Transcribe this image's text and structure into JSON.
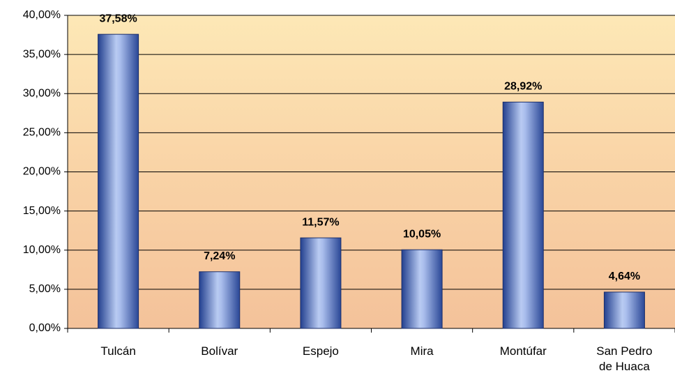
{
  "chart_data": {
    "type": "bar",
    "categories": [
      "Tulcán",
      "Bolívar",
      "Espejo",
      "Mira",
      "Montúfar",
      "San Pedro de Huaca"
    ],
    "values": [
      37.58,
      7.24,
      11.57,
      10.05,
      28.92,
      4.64
    ],
    "value_labels": [
      "37,58%",
      "7,24%",
      "11,57%",
      "10,05%",
      "28,92%",
      "4,64%"
    ],
    "ylim": [
      0,
      40
    ],
    "yticks": [
      {
        "value": 0,
        "label": "0,00%"
      },
      {
        "value": 5,
        "label": "5,00%"
      },
      {
        "value": 10,
        "label": "10,00%"
      },
      {
        "value": 15,
        "label": "15,00%"
      },
      {
        "value": 20,
        "label": "20,00%"
      },
      {
        "value": 25,
        "label": "25,00%"
      },
      {
        "value": 30,
        "label": "30,00%"
      },
      {
        "value": 35,
        "label": "35,00%"
      },
      {
        "value": 40,
        "label": "40,00%"
      }
    ],
    "grid": true
  }
}
